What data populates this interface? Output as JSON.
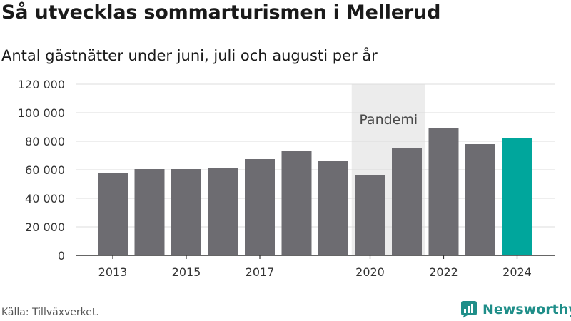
{
  "title": "Så utvecklas sommarturismen i Mellerud",
  "subtitle": "Antal gästnätter under juni, juli och augusti per år",
  "source": "Källa: Tillväxverket.",
  "logo": {
    "text": "Newsworthy",
    "color": "#1f8e89"
  },
  "colors": {
    "bar": "#6d6c71",
    "highlight": "#00a69c",
    "band": "#ececec",
    "grid": "#dddddd",
    "axis": "#333333"
  },
  "chart_data": {
    "type": "bar",
    "categories": [
      "2013",
      "2014",
      "2015",
      "2016",
      "2017",
      "2018",
      "2019",
      "2020",
      "2021",
      "2022",
      "2023",
      "2024"
    ],
    "values": [
      57500,
      60500,
      60500,
      61000,
      67500,
      73500,
      66000,
      56000,
      75000,
      89000,
      78000,
      82500
    ],
    "xtick_labels": [
      "2013",
      "",
      "2015",
      "",
      "2017",
      "",
      "",
      "2020",
      "",
      "2022",
      "",
      "2024"
    ],
    "highlight_index": 11,
    "yticks": [
      0,
      20000,
      40000,
      60000,
      80000,
      100000,
      120000
    ],
    "ytick_labels": [
      "0",
      "20 000",
      "40 000",
      "60 000",
      "80 000",
      "100 000",
      "120 000"
    ],
    "ylim": [
      0,
      120000
    ],
    "band": {
      "label": "Pandemi",
      "from": "2020",
      "to": "2021"
    },
    "xlabel": "",
    "ylabel": ""
  }
}
